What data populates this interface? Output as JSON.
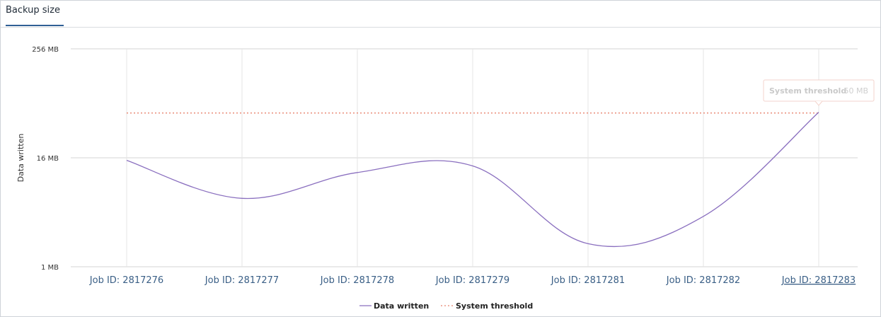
{
  "panel": {
    "tab_label": "Backup size"
  },
  "chart_data": {
    "type": "line",
    "title": "",
    "ylabel": "Data written",
    "xlabel": "",
    "y_scale": "log2",
    "ylim_mb": [
      1,
      256
    ],
    "y_ticks": [
      {
        "value": 1,
        "label": "1 MB"
      },
      {
        "value": 16,
        "label": "16 MB"
      },
      {
        "value": 256,
        "label": "256 MB"
      }
    ],
    "categories": [
      "Job ID: 2817276",
      "Job ID: 2817277",
      "Job ID: 2817278",
      "Job ID: 2817279",
      "Job ID: 2817281",
      "Job ID: 2817282",
      "Job ID: 2817283"
    ],
    "series": [
      {
        "name": "Data written",
        "color": "#8a6fbf",
        "values": [
          15,
          5.7,
          11,
          13,
          1.8,
          3.6,
          51
        ]
      },
      {
        "name": "System threshold",
        "color": "#e8836e",
        "style": "dotted",
        "values": [
          50,
          50,
          50,
          50,
          50,
          50,
          50
        ]
      }
    ],
    "grid": true,
    "legend_position": "bottom-center",
    "tooltip": {
      "label": "System threshold",
      "value": "50 MB",
      "category_index": 6
    }
  }
}
